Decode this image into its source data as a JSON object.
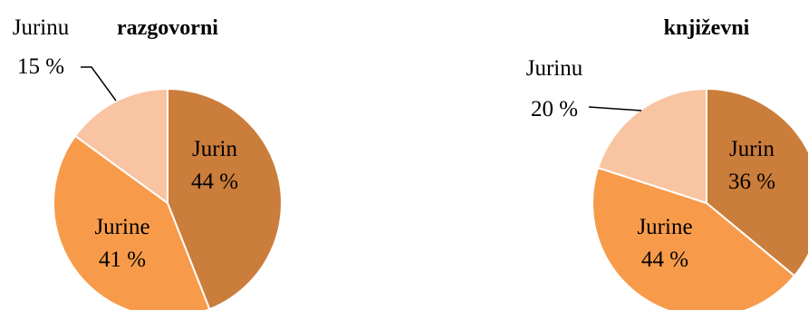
{
  "chart_data": [
    {
      "type": "pie",
      "title": "razgovorni",
      "slices": [
        {
          "label": "Jurin",
          "value": 44,
          "value_text": "44 %",
          "color": "#CB7D3B"
        },
        {
          "label": "Jurine",
          "value": 41,
          "value_text": "41 %",
          "color": "#F79B4A"
        },
        {
          "label": "Jurinu",
          "value": 15,
          "value_text": "15 %",
          "color": "#F9C4A2"
        }
      ]
    },
    {
      "type": "pie",
      "title": "književni",
      "slices": [
        {
          "label": "Jurin",
          "value": 36,
          "value_text": "36 %",
          "color": "#CB7D3B"
        },
        {
          "label": "Jurine",
          "value": 44,
          "value_text": "44 %",
          "color": "#F79B4A"
        },
        {
          "label": "Jurinu",
          "value": 20,
          "value_text": "20 %",
          "color": "#F9C4A2"
        }
      ]
    }
  ]
}
